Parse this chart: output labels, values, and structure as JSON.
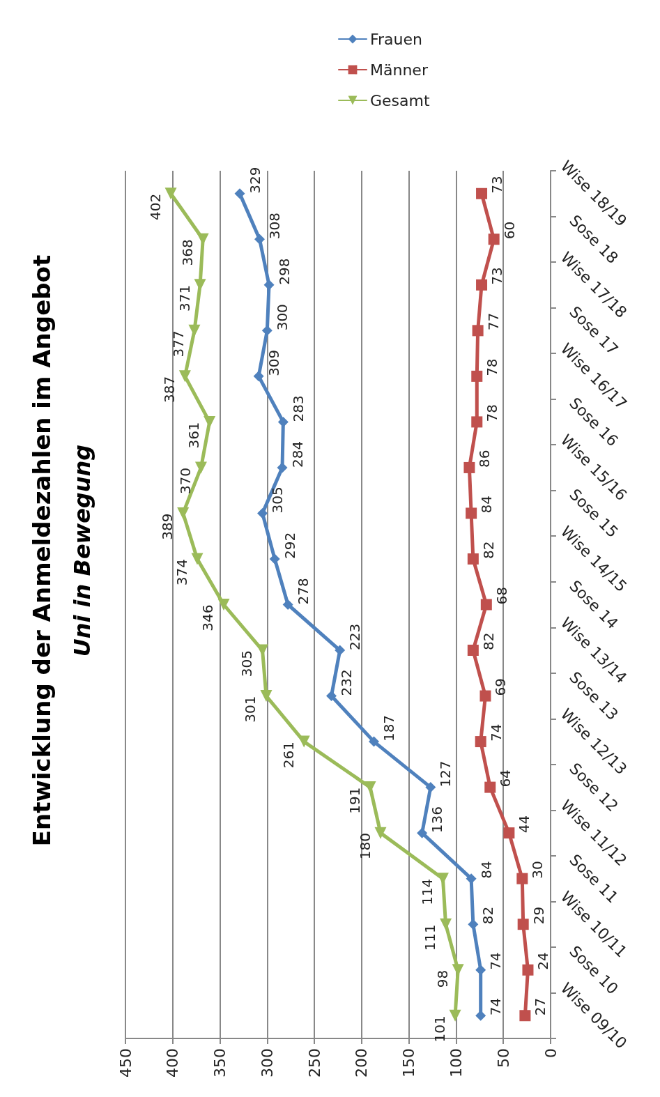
{
  "chart_data": {
    "type": "line",
    "title": "Entwicklung der Anmeldezahlen im Angebot",
    "subtitle": "Uni in Bewegung",
    "orientation": "horizontal",
    "categories": [
      "Wise 18/19",
      "Sose 18",
      "Wise 17/18",
      "Sose 17",
      "Wise 16/17",
      "Sose 16",
      "Wise 15/16",
      "Sose 15",
      "Wise 14/15",
      "Sose 14",
      "Wise 13/14",
      "Sose 13",
      "Wise 12/13",
      "Sose 12",
      "Wise 11/12",
      "Sose 11",
      "Wise 10/11",
      "Sose 10",
      "Wise 09/10"
    ],
    "series": [
      {
        "name": "Frauen",
        "color": "#4f81bd",
        "marker": "diamond",
        "values": [
          329,
          308,
          298,
          300,
          309,
          283,
          284,
          305,
          292,
          278,
          223,
          232,
          187,
          127,
          136,
          84,
          82,
          74,
          74
        ]
      },
      {
        "name": "Männer",
        "color": "#c0504d",
        "marker": "square",
        "values": [
          73,
          60,
          73,
          77,
          78,
          78,
          86,
          84,
          82,
          68,
          82,
          69,
          74,
          64,
          44,
          30,
          29,
          24,
          27
        ]
      },
      {
        "name": "Gesamt",
        "color": "#9bbb59",
        "marker": "triangle",
        "values": [
          402,
          368,
          371,
          377,
          387,
          361,
          370,
          389,
          374,
          346,
          305,
          301,
          261,
          191,
          180,
          114,
          111,
          98,
          101
        ]
      }
    ],
    "xlim": [
      450,
      0
    ],
    "xticks": [
      450,
      400,
      350,
      300,
      250,
      200,
      150,
      100,
      50,
      0
    ],
    "grid": "x",
    "legend": "top right",
    "data_labels": true,
    "line_style": "solid"
  }
}
